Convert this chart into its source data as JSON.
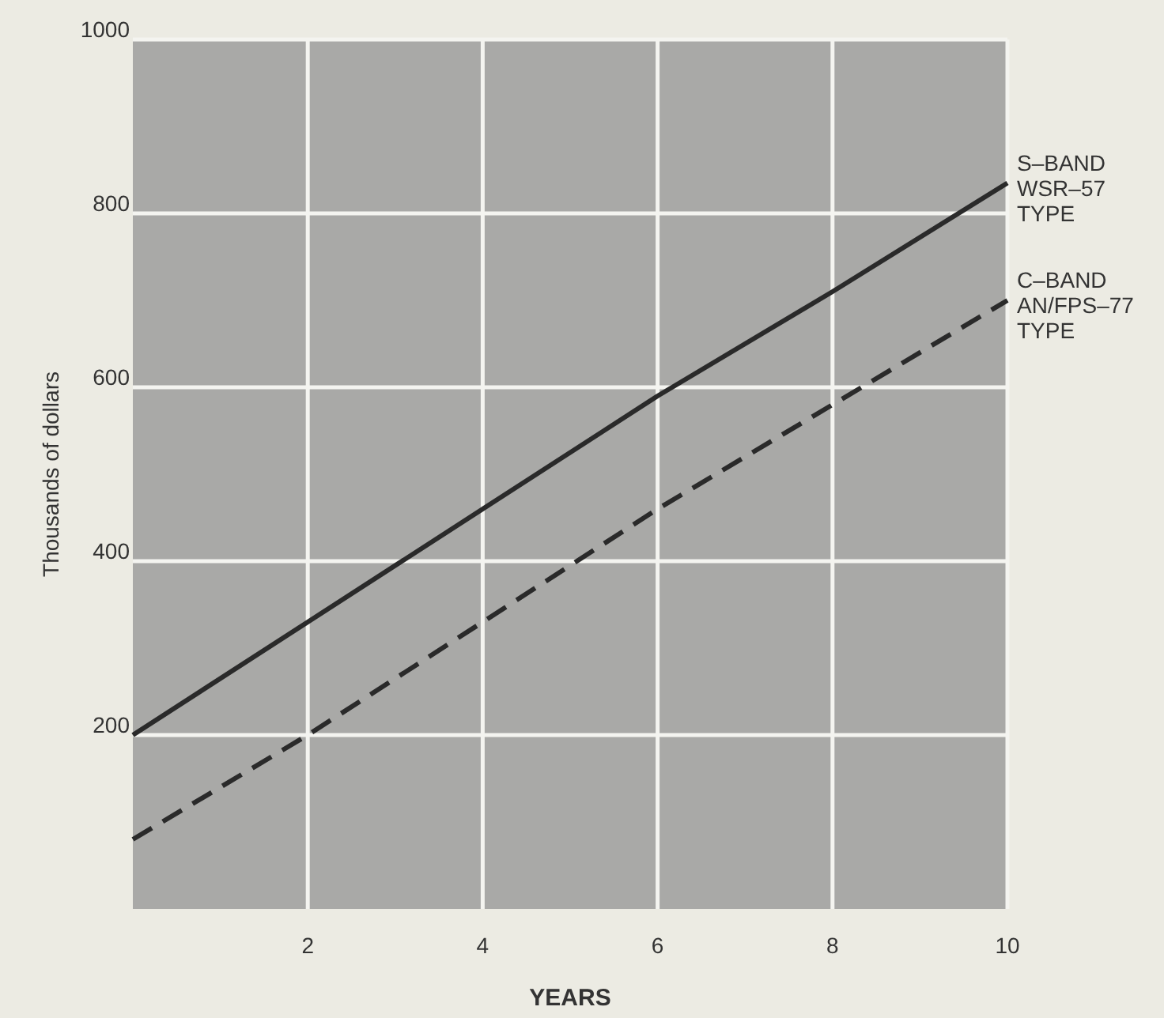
{
  "chart_data": {
    "type": "line",
    "xlabel": "YEARS",
    "ylabel": "Thousands of dollars",
    "x": [
      0,
      2,
      4,
      6,
      8,
      10
    ],
    "series": [
      {
        "name": "S–BAND\nWSR–57\nTYPE",
        "color": "#2a2a2a",
        "line_style": "solid",
        "values": [
          200,
          330,
          460,
          590,
          710,
          835
        ]
      },
      {
        "name": "C–BAND\nAN/FPS–77\nTYPE",
        "color": "#2a2a2a",
        "line_style": "dashed",
        "values": [
          80,
          200,
          330,
          460,
          580,
          700
        ]
      }
    ],
    "xlim": [
      0,
      10
    ],
    "xticks": [
      2,
      4,
      6,
      8,
      10
    ],
    "ylim": [
      0,
      1000
    ],
    "yticks": [
      200,
      400,
      600,
      800,
      1000
    ],
    "grid": true,
    "marker": "none"
  }
}
